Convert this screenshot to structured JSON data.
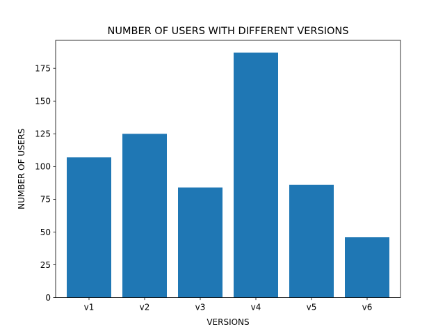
{
  "chart_data": {
    "type": "bar",
    "title": "NUMBER OF USERS WITH DIFFERENT VERSIONS",
    "xlabel": "VERSIONS",
    "ylabel": "NUMBER OF USERS",
    "categories": [
      "v1",
      "v2",
      "v3",
      "v4",
      "v5",
      "v6"
    ],
    "values": [
      107,
      125,
      84,
      187,
      86,
      46
    ],
    "ylim": [
      0,
      196.35
    ],
    "yticks": [
      "0",
      "25",
      "50",
      "75",
      "100",
      "125",
      "150",
      "175"
    ],
    "bar_color": "#1f77b4",
    "grid": false,
    "legend": "none"
  }
}
